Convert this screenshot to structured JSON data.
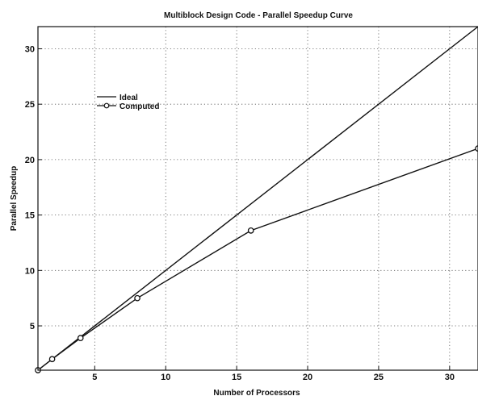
{
  "chart_data": {
    "type": "line",
    "title": "Multiblock Design Code - Parallel Speedup Curve",
    "xlabel": "Number of Processors",
    "ylabel": "Parallel Speedup",
    "xlim": [
      1,
      32
    ],
    "ylim": [
      1,
      32
    ],
    "xticks": [
      5,
      10,
      15,
      20,
      25,
      30
    ],
    "yticks": [
      5,
      10,
      15,
      20,
      25,
      30
    ],
    "grid": true,
    "legend_position": "upper-left",
    "series": [
      {
        "name": "Ideal",
        "style": "solid",
        "color": "#111111",
        "x": [
          1,
          32
        ],
        "y": [
          1,
          32
        ]
      },
      {
        "name": "Computed",
        "style": "solid-circle",
        "color": "#111111",
        "x": [
          1,
          2,
          4,
          8,
          16,
          32
        ],
        "y": [
          1,
          2,
          3.9,
          7.5,
          13.6,
          21
        ]
      }
    ]
  }
}
